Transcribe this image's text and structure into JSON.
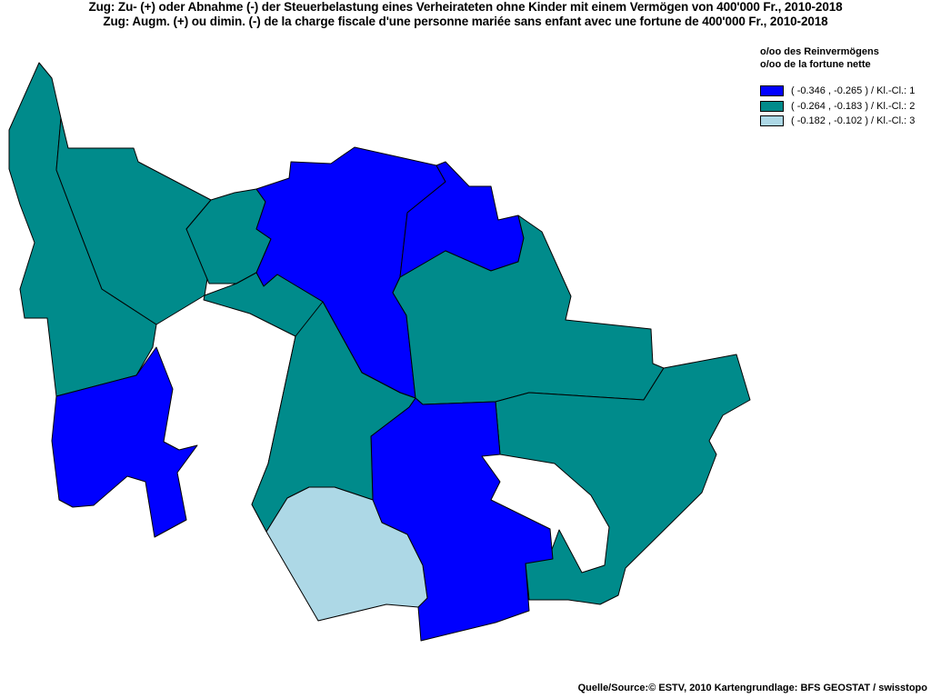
{
  "title_de": "Zug: Zu- (+) oder Abnahme (-) der Steuerbelastung  eines Verheirateten ohne Kinder mit einem Vermögen von 400'000 Fr., 2010-2018",
  "title_fr": "Zug: Augm. (+) ou dimin. (-) de la charge fiscale d'une personne mariée sans enfant avec une fortune de 400'000 Fr., 2010-2018",
  "legend": {
    "heading_de": "o/oo des Reinvermögens",
    "heading_fr": "o/oo de la fortune nette",
    "classes": [
      {
        "label": "( -0.346 , -0.265 ) / Kl.-Cl.: 1",
        "color": "#0000ff"
      },
      {
        "label": "( -0.264 , -0.183 ) / Kl.-Cl.: 2",
        "color": "#008b8b"
      },
      {
        "label": "( -0.182 , -0.102 ) / Kl.-Cl.: 3",
        "color": "#add8e6"
      }
    ]
  },
  "source": "Quelle/Source:© ESTV, 2010 Kartengrundlage: BFS GEOSTAT / swisstopo",
  "regions": [
    {
      "class": 2,
      "color": "#008b8b"
    },
    {
      "class": 2,
      "color": "#008b8b"
    },
    {
      "class": 2,
      "color": "#008b8b"
    },
    {
      "class": 1,
      "color": "#0000ff"
    },
    {
      "class": 1,
      "color": "#0000ff"
    },
    {
      "class": 1,
      "color": "#0000ff"
    },
    {
      "class": 2,
      "color": "#008b8b"
    },
    {
      "class": 2,
      "color": "#008b8b"
    },
    {
      "class": 2,
      "color": "#008b8b"
    },
    {
      "class": 1,
      "color": "#0000ff"
    },
    {
      "class": 2,
      "color": "#008b8b"
    },
    {
      "class": 3,
      "color": "#add8e6"
    }
  ]
}
